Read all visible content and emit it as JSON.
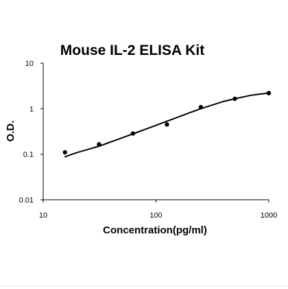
{
  "chart_data": {
    "type": "scatter",
    "title": "Mouse IL-2 ELISA Kit",
    "xlabel": "Concentration(pg/ml)",
    "ylabel": "O.D.",
    "x_scale": "log",
    "y_scale": "log",
    "xlim": [
      10,
      1000
    ],
    "ylim": [
      0.01,
      10
    ],
    "x_ticks": [
      {
        "value": 10,
        "label": "10"
      },
      {
        "value": 100,
        "label": "100"
      },
      {
        "value": 1000,
        "label": "1000"
      }
    ],
    "y_ticks": [
      {
        "value": 0.01,
        "label": "0.01"
      },
      {
        "value": 0.1,
        "label": "0.1"
      },
      {
        "value": 1,
        "label": "1"
      },
      {
        "value": 10,
        "label": "10"
      }
    ],
    "grid": false,
    "legend": "none",
    "points": [
      {
        "x": 15.6,
        "y": 0.11
      },
      {
        "x": 31.25,
        "y": 0.165
      },
      {
        "x": 62.5,
        "y": 0.285
      },
      {
        "x": 125,
        "y": 0.45
      },
      {
        "x": 250,
        "y": 1.08
      },
      {
        "x": 500,
        "y": 1.65
      },
      {
        "x": 1000,
        "y": 2.2
      }
    ],
    "fit_curve": [
      {
        "x": 15.6,
        "y": 0.088
      },
      {
        "x": 20,
        "y": 0.109
      },
      {
        "x": 31.25,
        "y": 0.15
      },
      {
        "x": 50,
        "y": 0.229
      },
      {
        "x": 62.5,
        "y": 0.28
      },
      {
        "x": 100,
        "y": 0.43
      },
      {
        "x": 125,
        "y": 0.53
      },
      {
        "x": 200,
        "y": 0.82
      },
      {
        "x": 250,
        "y": 1.0
      },
      {
        "x": 400,
        "y": 1.45
      },
      {
        "x": 500,
        "y": 1.65
      },
      {
        "x": 700,
        "y": 1.98
      },
      {
        "x": 1000,
        "y": 2.22
      }
    ],
    "colors": {
      "marker": "#000000",
      "line": "#000000",
      "axes": "#000000",
      "background": "#ffffff"
    }
  }
}
